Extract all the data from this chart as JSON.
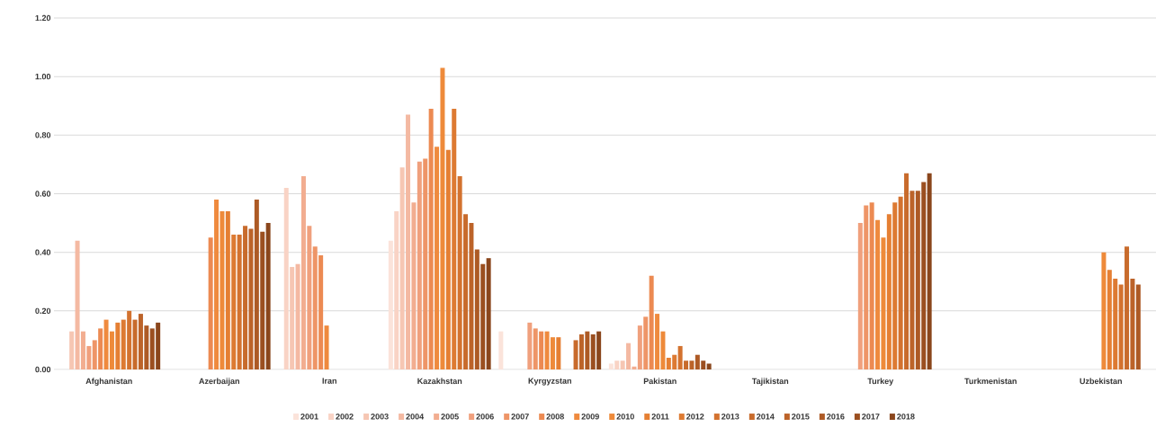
{
  "chart_data": {
    "type": "bar",
    "categories": [
      "Afghanistan",
      "Azerbaijan",
      "Iran",
      "Kazakhstan",
      "Kyrgyzstan",
      "Pakistan",
      "Tajikistan",
      "Turkey",
      "Turkmenistan",
      "Uzbekistan"
    ],
    "series": [
      {
        "name": "2001",
        "color": "#fbe3da",
        "values": [
          null,
          null,
          null,
          0.44,
          0.13,
          0.02,
          null,
          null,
          null,
          null
        ]
      },
      {
        "name": "2002",
        "color": "#f9d3c5",
        "values": [
          null,
          null,
          0.62,
          0.54,
          null,
          0.03,
          null,
          null,
          null,
          null
        ]
      },
      {
        "name": "2003",
        "color": "#f6c6b3",
        "values": [
          0.13,
          null,
          0.35,
          0.69,
          null,
          0.03,
          null,
          null,
          null,
          null
        ]
      },
      {
        "name": "2004",
        "color": "#f4b9a2",
        "values": [
          0.44,
          null,
          0.36,
          0.87,
          null,
          0.09,
          null,
          null,
          null,
          null
        ]
      },
      {
        "name": "2005",
        "color": "#f2ad90",
        "values": [
          0.13,
          null,
          0.66,
          0.57,
          null,
          0.01,
          null,
          null,
          null,
          null
        ]
      },
      {
        "name": "2006",
        "color": "#f0a07d",
        "values": [
          0.08,
          null,
          0.49,
          0.71,
          0.16,
          0.15,
          null,
          0.5,
          null,
          null
        ]
      },
      {
        "name": "2007",
        "color": "#ee9567",
        "values": [
          0.1,
          null,
          0.42,
          0.72,
          0.14,
          0.18,
          null,
          0.56,
          null,
          null
        ]
      },
      {
        "name": "2008",
        "color": "#ec8a52",
        "values": [
          0.14,
          0.45,
          0.39,
          0.89,
          0.13,
          0.32,
          null,
          0.57,
          null,
          null
        ]
      },
      {
        "name": "2009",
        "color": "#ef8a3e",
        "values": [
          0.17,
          0.58,
          0.15,
          0.76,
          0.13,
          0.19,
          null,
          0.51,
          null,
          null
        ]
      },
      {
        "name": "2010",
        "color": "#ee8a3a",
        "values": [
          0.13,
          0.54,
          null,
          1.03,
          0.11,
          0.13,
          null,
          0.45,
          null,
          0.4
        ]
      },
      {
        "name": "2011",
        "color": "#e57f33",
        "values": [
          0.16,
          0.54,
          null,
          0.75,
          0.11,
          0.04,
          null,
          0.53,
          null,
          0.34
        ]
      },
      {
        "name": "2012",
        "color": "#dd7a32",
        "values": [
          0.17,
          0.46,
          null,
          0.89,
          null,
          0.05,
          null,
          0.57,
          null,
          0.31
        ]
      },
      {
        "name": "2013",
        "color": "#d3722f",
        "values": [
          0.2,
          0.46,
          null,
          0.66,
          null,
          0.08,
          null,
          0.59,
          null,
          0.29
        ]
      },
      {
        "name": "2014",
        "color": "#c86b2c",
        "values": [
          0.17,
          0.49,
          null,
          0.53,
          0.1,
          0.03,
          null,
          0.67,
          null,
          0.42
        ]
      },
      {
        "name": "2015",
        "color": "#bc6329",
        "values": [
          0.19,
          0.48,
          null,
          0.5,
          0.12,
          0.03,
          null,
          0.61,
          null,
          0.31
        ]
      },
      {
        "name": "2016",
        "color": "#ad5a25",
        "values": [
          0.15,
          0.58,
          null,
          0.41,
          0.13,
          0.05,
          null,
          0.61,
          null,
          0.29
        ]
      },
      {
        "name": "2017",
        "color": "#9b4f20",
        "values": [
          0.14,
          0.47,
          null,
          0.36,
          0.12,
          0.03,
          null,
          0.64,
          null,
          null
        ]
      },
      {
        "name": "2018",
        "color": "#8a461c",
        "values": [
          0.16,
          0.5,
          null,
          0.38,
          0.13,
          0.02,
          null,
          0.67,
          null,
          null
        ]
      }
    ],
    "ylim": [
      0,
      1.2
    ],
    "yticks": [
      {
        "value": 0,
        "label": "0.00"
      },
      {
        "value": 0.2,
        "label": "0.20"
      },
      {
        "value": 0.4,
        "label": "0.40"
      },
      {
        "value": 0.6,
        "label": "0.60"
      },
      {
        "value": 0.8,
        "label": "0.80"
      },
      {
        "value": 1.0,
        "label": "1.00"
      },
      {
        "value": 1.2,
        "label": "1.20"
      }
    ],
    "grid": "y",
    "legend": "bottom"
  }
}
